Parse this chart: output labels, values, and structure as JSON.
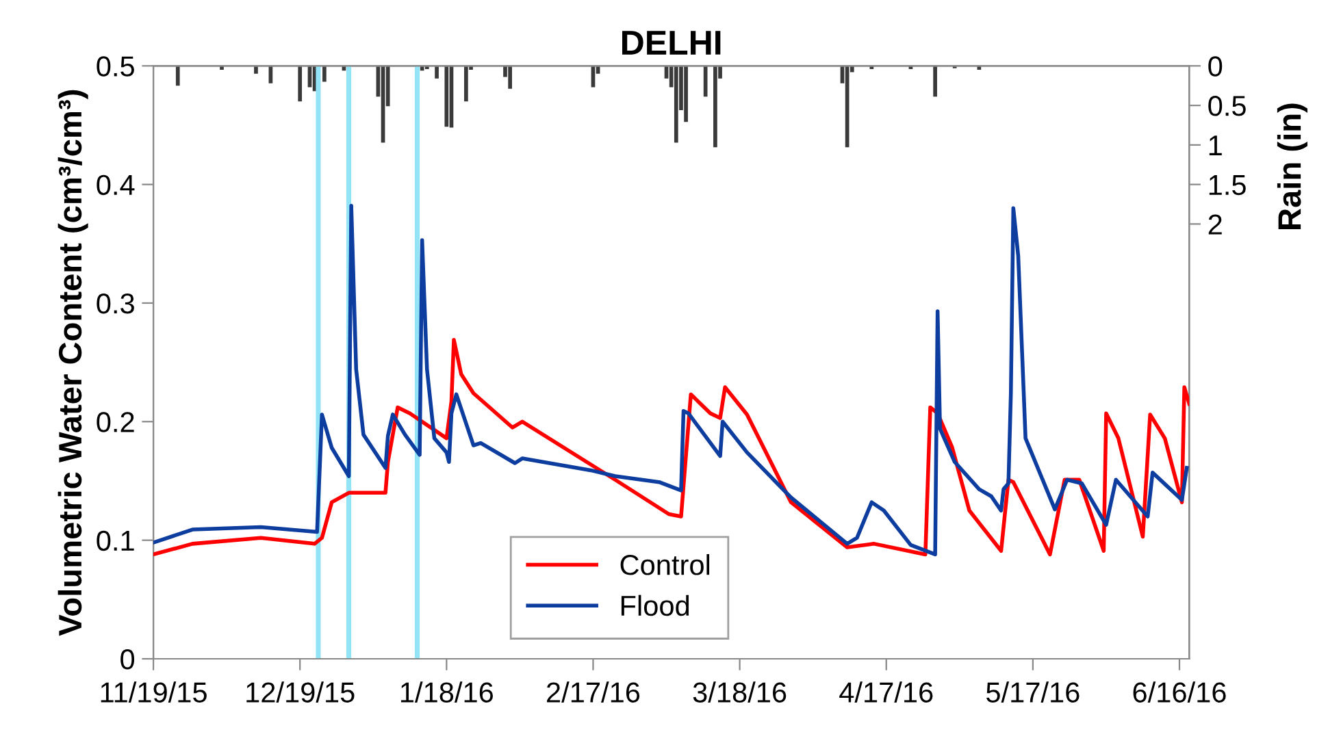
{
  "chart_data": {
    "type": "line",
    "title": "DELHI",
    "ylabel": "Volumetric Water Content (cm³/cm³)",
    "y2label": "Rain (in)",
    "xlim": [
      "2015-11-19",
      "2016-06-18"
    ],
    "xticks": [
      {
        "value": "2015-11-19",
        "label": "11/19/15"
      },
      {
        "value": "2015-12-19",
        "label": "12/19/15"
      },
      {
        "value": "2016-01-18",
        "label": "1/18/16"
      },
      {
        "value": "2016-02-17",
        "label": "2/17/16"
      },
      {
        "value": "2016-03-18",
        "label": "3/18/16"
      },
      {
        "value": "2016-04-17",
        "label": "4/17/16"
      },
      {
        "value": "2016-05-17",
        "label": "5/17/16"
      },
      {
        "value": "2016-06-16",
        "label": "6/16/16"
      }
    ],
    "ylim": [
      0,
      0.5
    ],
    "yticks": [
      0,
      0.1,
      0.2,
      0.3,
      0.4,
      0.5
    ],
    "y2lim": [
      7.5,
      0
    ],
    "y2ticks": [
      0,
      0.5,
      1,
      1.5,
      2
    ],
    "grid": false,
    "legend": "bottom",
    "marker": "none",
    "line_style": "solid",
    "bands": [
      {
        "axis": "x",
        "from": "2015-12-22T06:00",
        "to": "2015-12-23T06:00",
        "color": "#94e4f8"
      },
      {
        "axis": "x",
        "from": "2015-12-28T12:00",
        "to": "2015-12-29T12:00",
        "color": "#94e4f8"
      },
      {
        "axis": "x",
        "from": "2016-01-11T12:00",
        "to": "2016-01-12T12:00",
        "color": "#94e4f8"
      }
    ],
    "series": [
      {
        "type": "bar",
        "axis": "y2",
        "color": "#3a3a3a",
        "x": [
          "2015-11-24",
          "2015-12-03",
          "2015-12-10",
          "2015-12-13",
          "2015-12-19",
          "2015-12-21",
          "2015-12-22",
          "2015-12-24",
          "2015-12-28",
          "2016-01-04",
          "2016-01-05",
          "2016-01-06",
          "2016-01-13",
          "2016-01-14",
          "2016-01-16",
          "2016-01-18",
          "2016-01-19",
          "2016-01-22",
          "2016-01-23",
          "2016-01-30",
          "2016-01-31",
          "2016-02-17",
          "2016-02-18",
          "2016-03-03",
          "2016-03-04",
          "2016-03-05",
          "2016-03-06",
          "2016-03-07",
          "2016-03-11",
          "2016-03-13",
          "2016-03-14",
          "2016-04-08",
          "2016-04-09",
          "2016-04-10",
          "2016-04-14",
          "2016-04-22",
          "2016-04-27",
          "2016-05-01",
          "2016-05-06"
        ],
        "values": [
          0.25,
          0.05,
          0.1,
          0.22,
          0.45,
          0.27,
          0.32,
          0.2,
          0.06,
          0.39,
          0.97,
          0.51,
          0.06,
          0.04,
          0.16,
          0.77,
          0.78,
          0.45,
          0.05,
          0.14,
          0.29,
          0.27,
          0.1,
          0.16,
          0.27,
          0.97,
          0.56,
          0.71,
          0.39,
          1.03,
          0.16,
          0.22,
          1.03,
          0.08,
          0.04,
          0.04,
          0.39,
          0.03,
          0.05
        ]
      },
      {
        "name": "Control",
        "color": "#ff0000",
        "x": [
          "2015-11-19",
          "2015-11-27",
          "2015-12-11",
          "2015-12-22",
          "2015-12-23T12:00",
          "2015-12-25T12:00",
          "2015-12-29",
          "2016-01-05T12:00",
          "2016-01-06",
          "2016-01-08",
          "2016-01-10T12:00",
          "2016-01-18",
          "2016-01-19",
          "2016-01-19T12:00",
          "2016-01-21",
          "2016-01-23T12:00",
          "2016-01-31T12:00",
          "2016-02-02T12:00",
          "2016-02-21T12:00",
          "2016-03-03T12:00",
          "2016-03-06",
          "2016-03-08",
          "2016-03-12",
          "2016-03-14",
          "2016-03-15",
          "2016-03-19T12:00",
          "2016-03-28T12:00",
          "2016-04-09",
          "2016-04-14T12:00",
          "2016-04-25",
          "2016-04-26",
          "2016-04-27T12:00",
          "2016-04-30T12:00",
          "2016-05-04",
          "2016-05-10T12:00",
          "2016-05-12",
          "2016-05-13",
          "2016-05-20T12:00",
          "2016-05-23T12:00",
          "2016-05-26T12:00",
          "2016-05-31T12:00",
          "2016-06-01",
          "2016-06-03T12:00",
          "2016-06-08T12:00",
          "2016-06-10",
          "2016-06-13",
          "2016-06-16T12:00",
          "2016-06-17",
          "2016-06-18"
        ],
        "values": [
          0.088,
          0.097,
          0.102,
          0.097,
          0.102,
          0.132,
          0.14,
          0.14,
          0.166,
          0.212,
          0.207,
          0.186,
          0.217,
          0.269,
          0.24,
          0.224,
          0.195,
          0.2,
          0.151,
          0.122,
          0.12,
          0.223,
          0.207,
          0.203,
          0.229,
          0.206,
          0.132,
          0.094,
          0.097,
          0.088,
          0.212,
          0.207,
          0.178,
          0.125,
          0.091,
          0.151,
          0.149,
          0.088,
          0.151,
          0.151,
          0.091,
          0.207,
          0.186,
          0.103,
          0.206,
          0.186,
          0.132,
          0.229,
          0.215
        ]
      },
      {
        "name": "Flood",
        "color": "#0d3d9e",
        "x": [
          "2015-11-19",
          "2015-11-27",
          "2015-12-11",
          "2015-12-22T12:00",
          "2015-12-23T12:00",
          "2015-12-25T12:00",
          "2015-12-29",
          "2015-12-29T12:00",
          "2015-12-30T12:00",
          "2016-01-01",
          "2016-01-05T12:00",
          "2016-01-06",
          "2016-01-07",
          "2016-01-09T12:00",
          "2016-01-12T12:00",
          "2016-01-13",
          "2016-01-14",
          "2016-01-15T12:00",
          "2016-01-18",
          "2016-01-18T12:00",
          "2016-01-19",
          "2016-01-20",
          "2016-01-23T12:00",
          "2016-01-25",
          "2016-02-01",
          "2016-02-02T12:00",
          "2016-02-16T12:00",
          "2016-02-21T12:00",
          "2016-03-01T12:00",
          "2016-03-06",
          "2016-03-06T12:00",
          "2016-03-07T12:00",
          "2016-03-14",
          "2016-03-14T12:00",
          "2016-03-19T12:00",
          "2016-03-28T12:00",
          "2016-04-09",
          "2016-04-11",
          "2016-04-14",
          "2016-04-16T12:00",
          "2016-04-22",
          "2016-04-27",
          "2016-04-27T12:00",
          "2016-04-28",
          "2016-05-01",
          "2016-05-06",
          "2016-05-08T12:00",
          "2016-05-10T12:00",
          "2016-05-11",
          "2016-05-12",
          "2016-05-12T12:00",
          "2016-05-13",
          "2016-05-14",
          "2016-05-15T12:00",
          "2016-05-21T12:00",
          "2016-05-24",
          "2016-05-27",
          "2016-06-01",
          "2016-06-03",
          "2016-06-09T12:00",
          "2016-06-10T12:00",
          "2016-06-16T12:00",
          "2016-06-17T12:00"
        ],
        "values": [
          0.098,
          0.109,
          0.111,
          0.107,
          0.206,
          0.178,
          0.154,
          0.382,
          0.244,
          0.189,
          0.161,
          0.188,
          0.206,
          0.189,
          0.172,
          0.353,
          0.244,
          0.186,
          0.174,
          0.166,
          0.207,
          0.223,
          0.18,
          0.182,
          0.165,
          0.169,
          0.159,
          0.154,
          0.149,
          0.142,
          0.209,
          0.207,
          0.171,
          0.2,
          0.174,
          0.136,
          0.097,
          0.102,
          0.132,
          0.125,
          0.096,
          0.088,
          0.293,
          0.194,
          0.166,
          0.143,
          0.137,
          0.125,
          0.143,
          0.148,
          0.224,
          0.38,
          0.34,
          0.186,
          0.126,
          0.151,
          0.148,
          0.113,
          0.151,
          0.12,
          0.157,
          0.134,
          0.161
        ]
      }
    ]
  }
}
